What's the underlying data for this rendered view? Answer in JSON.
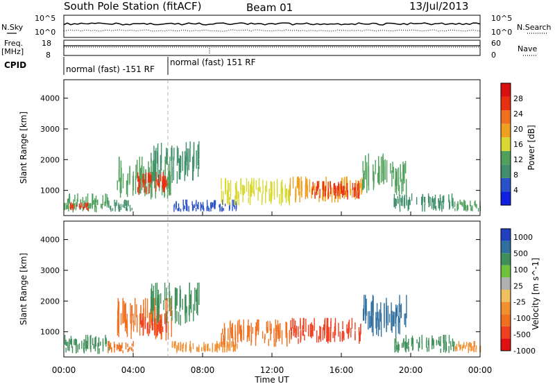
{
  "header": {
    "station": "South Pole Station (fitACF)",
    "beam": "Beam 01",
    "date": "13/Jul/2013"
  },
  "strips": {
    "nsky_label": "N.Sky",
    "nsky_ticks": [
      "10^5",
      "10^0"
    ],
    "nsearch_label": "N.Search",
    "nsearch_ticks": [
      "10^5",
      "10^0"
    ],
    "freq_label_1": "Freq.",
    "freq_label_2": "[MHz]",
    "freq_ticks": [
      "18",
      "8"
    ],
    "nave_label": "Nave",
    "nave_ticks": [
      "60",
      "0"
    ],
    "cpid_label": "CPID",
    "cpid_segments": [
      {
        "label": "normal (fast) -151 RF",
        "start_h": 0,
        "end_h": 6
      },
      {
        "label": "normal (fast) 151 RF",
        "start_h": 6,
        "end_h": 24
      }
    ]
  },
  "x_axis": {
    "title": "Time UT",
    "ticks": [
      {
        "h": 0,
        "label": "00:00"
      },
      {
        "h": 4,
        "label": "04:00"
      },
      {
        "h": 8,
        "label": "08:00"
      },
      {
        "h": 12,
        "label": "12:00"
      },
      {
        "h": 16,
        "label": "16:00"
      },
      {
        "h": 20,
        "label": "20:00"
      },
      {
        "h": 24,
        "label": "00:00"
      }
    ]
  },
  "colors": {
    "power": [
      "#1020e0",
      "#2a52c8",
      "#3f8f6a",
      "#4ea05a",
      "#d8d830",
      "#f0a020",
      "#f07020",
      "#e83010",
      "#d81010"
    ],
    "velocity": [
      "#e01010",
      "#f04020",
      "#f07020",
      "#f09030",
      "#f0c060",
      "#b0b0b0",
      "#70c040",
      "#3f8f5a",
      "#3070a0",
      "#2040c0"
    ]
  },
  "chart_data": [
    {
      "type": "heatmap",
      "panel": "power",
      "ylabel": "Slant Range [km]",
      "xlabel": "",
      "xlim": [
        0,
        24
      ],
      "ylim": [
        180,
        4600
      ],
      "y_ticks": [
        1000,
        2000,
        3000,
        4000
      ],
      "colorbar_label": "Power [dB]",
      "colorbar_ticks": [
        4,
        8,
        12,
        16,
        20,
        24,
        28
      ],
      "colorbar_range": [
        0,
        32
      ],
      "blobs": [
        {
          "t0": 0.0,
          "t1": 2.6,
          "r0": 280,
          "r1": 900,
          "level": 12
        },
        {
          "t0": 0.3,
          "t1": 1.4,
          "r0": 320,
          "r1": 620,
          "level": 26
        },
        {
          "t0": 2.5,
          "t1": 4.0,
          "r0": 300,
          "r1": 700,
          "level": 8
        },
        {
          "t0": 3.0,
          "t1": 6.2,
          "r0": 700,
          "r1": 2100,
          "level": 14
        },
        {
          "t0": 4.2,
          "t1": 5.9,
          "r0": 850,
          "r1": 1600,
          "level": 25
        },
        {
          "t0": 5.0,
          "t1": 7.8,
          "r0": 1200,
          "r1": 2600,
          "level": 10
        },
        {
          "t0": 6.2,
          "t1": 10.0,
          "r0": 300,
          "r1": 700,
          "level": 6
        },
        {
          "t0": 9.0,
          "t1": 13.0,
          "r0": 500,
          "r1": 1400,
          "level": 15
        },
        {
          "t0": 13.0,
          "t1": 17.2,
          "r0": 600,
          "r1": 1450,
          "level": 20
        },
        {
          "t0": 14.3,
          "t1": 17.0,
          "r0": 700,
          "r1": 1300,
          "level": 28
        },
        {
          "t0": 17.2,
          "t1": 19.8,
          "r0": 800,
          "r1": 2200,
          "level": 14
        },
        {
          "t0": 19.0,
          "t1": 22.5,
          "r0": 300,
          "r1": 900,
          "level": 8
        },
        {
          "t0": 22.5,
          "t1": 24.0,
          "r0": 300,
          "r1": 700,
          "level": 12
        }
      ]
    },
    {
      "type": "heatmap",
      "panel": "velocity",
      "ylabel": "Slant Range [km]",
      "xlabel": "Time UT",
      "xlim": [
        0,
        24
      ],
      "ylim": [
        180,
        4600
      ],
      "y_ticks": [
        1000,
        2000,
        3000,
        4000
      ],
      "colorbar_label": "Velocity [m s^-1]",
      "colorbar_ticks": [
        1000,
        500,
        100,
        25,
        -25,
        -100,
        -500,
        -1000
      ],
      "blobs": [
        {
          "t0": 0.0,
          "t1": 2.6,
          "r0": 280,
          "r1": 900,
          "level": 250
        },
        {
          "t0": 2.5,
          "t1": 4.0,
          "r0": 300,
          "r1": 700,
          "level": -200
        },
        {
          "t0": 3.0,
          "t1": 6.2,
          "r0": 700,
          "r1": 2100,
          "level": -300
        },
        {
          "t0": 4.2,
          "t1": 5.9,
          "r0": 850,
          "r1": 1600,
          "level": -600
        },
        {
          "t0": 5.0,
          "t1": 7.8,
          "r0": 1200,
          "r1": 2600,
          "level": 150
        },
        {
          "t0": 6.2,
          "t1": 10.0,
          "r0": 300,
          "r1": 700,
          "level": -150
        },
        {
          "t0": 9.0,
          "t1": 13.0,
          "r0": 500,
          "r1": 1400,
          "level": -300
        },
        {
          "t0": 13.0,
          "t1": 17.2,
          "r0": 600,
          "r1": 1450,
          "level": -500
        },
        {
          "t0": 17.2,
          "t1": 19.8,
          "r0": 800,
          "r1": 2200,
          "level": 700
        },
        {
          "t0": 19.0,
          "t1": 22.5,
          "r0": 300,
          "r1": 900,
          "level": 300
        },
        {
          "t0": 22.5,
          "t1": 24.0,
          "r0": 300,
          "r1": 700,
          "level": -150
        }
      ]
    }
  ]
}
